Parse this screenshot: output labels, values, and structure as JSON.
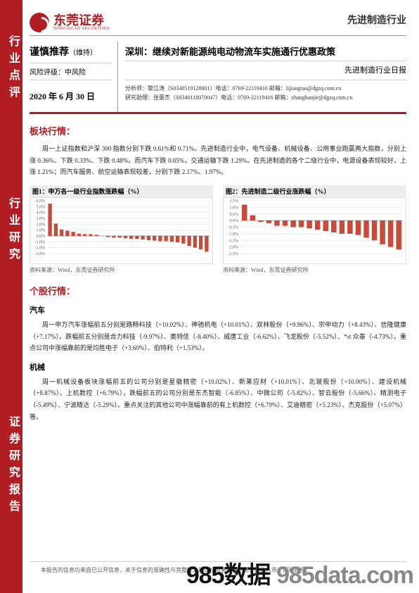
{
  "left_band": {
    "color": "#b01e23",
    "labels": [
      "行业点评",
      "行业研究",
      "证券研究报告"
    ]
  },
  "header": {
    "logo_name": "东莞证券",
    "logo_sub": "DONGGUAN SECURITIES",
    "industry": "先进制造行业"
  },
  "info": {
    "rating": "谨慎推荐",
    "rating_suffix": "（维持）",
    "risk_label": "风险评级：",
    "risk_value": "中风险",
    "date": "2020 年 6 月 30 日",
    "title": "深圳：继续对新能源纯电动物流车实施通行优惠政策",
    "subtitle": "先进制造行业日报",
    "analyst1": "分析师：黎江涛（S0340519120001）电话：0769-22119416 邮箱：lijiangtao@dgzq.com.cn",
    "analyst2": "研究助理：张豪杰（S0340118070047）电话：0769-22119416 邮箱：zhanghaojie@dgzq.com.cn"
  },
  "section1": {
    "title": "板块行情：",
    "para": "周一上证指数和沪深 300 指数分别下跌 0.61%和 0.71%。先进制造行业中，电气设备、机械设备、公用事业跑赢两大指数，分别上涨 0.36%、下跌 0.33%、下跌 0.48%。而汽车下跌 0.85%，交通运输下跌 1.29%。在先进制造的各个二级行业中，电源设备表现较好，上涨 1.21%；而汽车服务、航空运输表现较差，分别下跌 2.17%、1.97%。"
  },
  "chart1": {
    "title": "图1：申万各一级行业指数涨跌幅（%）",
    "source": "资料来源：Wind，东莞证券研究所",
    "type": "bar",
    "ylim": [
      -3.0,
      6.0
    ],
    "ytick_step": 1.0,
    "bar_color_pos": "#c84b3a",
    "bar_color_neg": "#c84b3a",
    "grid_color": "#d8d8d8",
    "label_fontsize": 6,
    "values": [
      5.5,
      2.1,
      1.1,
      0.9,
      0.7,
      0.4,
      0.3,
      0.3,
      0.2,
      0,
      -0.2,
      -0.3,
      -0.3,
      -0.4,
      -0.5,
      -0.5,
      -0.6,
      -0.7,
      -0.8,
      -0.9,
      -0.9,
      -1.0,
      -1.1,
      -1.3,
      -1.7,
      -2.0,
      -2.3,
      -2.7
    ]
  },
  "chart2": {
    "title": "图2：先进制造二级行业涨跌幅（%）",
    "source": "资料来源：Wind，东莞证券研究所",
    "type": "bar",
    "ylim": [
      -2.5,
      1.5
    ],
    "ytick_step": 0.5,
    "bar_color": "#c84b3a",
    "grid_color": "#d8d8d8",
    "label_fontsize": 6,
    "values": [
      1.2,
      0.4,
      -0.1,
      -0.2,
      -0.4,
      -0.4,
      -0.5,
      -0.5,
      -0.6,
      -0.7,
      -0.8,
      -0.9,
      -1.0,
      -1.0,
      -1.1,
      -1.3,
      -1.5,
      -1.8,
      -2.0,
      -2.2
    ]
  },
  "section2": {
    "title": "个股行情：",
    "sub1_title": "汽车",
    "sub1_para": "周一申万汽车涨幅前五分别是路畅科技（+10.02%）、神驰机电（+10.01%）、双林股份（+9.96%）、宗申动力（+8.43%）、信隆健康（+7.17%）。跌幅前五分别是合力科技（-9.97%）、奥特佳（-8.40%）、威唐工业（-6.62%）、飞龙股份（-5.52%）、*st 众泰（-4.73%）。重点公司中涨幅靠前的是均胜电子（+3.60%）、伯特利（+1.53%）。",
    "sub2_title": "机械",
    "sub2_para": "周一机械设备板块涨幅前五的公司分别是星徽精密（+10.02%）、新莱应材（+10.01%）、北玻股份（+10.00%）、建设机械（+8.87%）、上机数控（+6.79%），跌幅前五的公司分别是东杰智能（-6.85%）、中微公司（-5.82%）、智云股份（-5.66%）、精测电子（-5.49%）、宁波精达（-5.29%）。重点关注的其他公司中涨幅靠前的有上机数控（+6.79%）、艾迪精密（+5.23%）、杰克股份（+5.07%）等。"
  },
  "footer": "本报告的信息均来自已公开信息，关于信息的准确性与完整性，建议投资者谨慎判断，据此入市，风险自担。",
  "watermark": "985数据 985data.com"
}
